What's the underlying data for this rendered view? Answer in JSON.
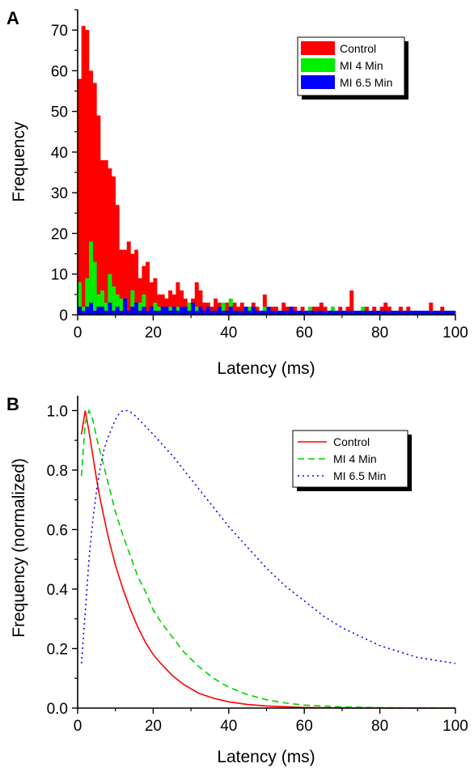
{
  "chart_data": [
    {
      "panel": "A",
      "type": "bar",
      "xlabel": "Latency (ms)",
      "ylabel": "Frequency",
      "xlim": [
        0,
        100
      ],
      "ylim": [
        0,
        75
      ],
      "xticks": [
        0,
        20,
        40,
        60,
        80,
        100
      ],
      "yticks": [
        0,
        10,
        20,
        30,
        40,
        50,
        60,
        70
      ],
      "bin_width": 1,
      "legend_position": "top-right",
      "series": [
        {
          "name": "Control",
          "color": "#ff0000",
          "values": [
            58,
            71,
            70,
            60,
            57,
            49,
            38,
            38,
            36,
            34,
            27,
            16,
            16,
            18,
            15,
            16,
            9,
            12,
            13,
            8,
            9,
            5,
            5,
            4,
            6,
            5,
            8,
            6,
            4,
            3,
            4,
            8,
            6,
            3,
            3,
            2,
            4,
            3,
            2,
            3,
            2,
            3,
            2,
            3,
            1,
            2,
            3,
            2,
            1,
            5,
            1,
            2,
            2,
            1,
            3,
            2,
            2,
            2,
            1,
            2,
            1,
            1,
            2,
            2,
            3,
            2,
            1,
            1,
            1,
            2,
            1,
            2,
            6,
            1,
            1,
            1,
            2,
            1,
            2,
            1,
            2,
            3,
            2,
            1,
            1,
            2,
            1,
            2,
            1,
            1,
            1,
            1,
            1,
            3,
            1,
            1,
            2,
            1,
            1,
            1
          ]
        },
        {
          "name": "MI 4 Min",
          "color": "#00ee00",
          "values": [
            8,
            2,
            9,
            18,
            13,
            5,
            6,
            3,
            10,
            7,
            5,
            4,
            4,
            1,
            6,
            1,
            3,
            5,
            1,
            1,
            3,
            2,
            1,
            2,
            2,
            1,
            2,
            0,
            1,
            3,
            1,
            2,
            1,
            1,
            2,
            0,
            1,
            2,
            3,
            1,
            4,
            1,
            1,
            1,
            1,
            2,
            1,
            1,
            1,
            2,
            1,
            1,
            1,
            1,
            1,
            0,
            2,
            1,
            1,
            1,
            1,
            2,
            1,
            1,
            1,
            1,
            1,
            2,
            1,
            1,
            1,
            1,
            1,
            1,
            1,
            2,
            1,
            1,
            1,
            1,
            1,
            1,
            1,
            1,
            1,
            1,
            1,
            1,
            1,
            1,
            1,
            1,
            1,
            1,
            1,
            1,
            1,
            1,
            1,
            1
          ]
        },
        {
          "name": "MI 6.5 Min",
          "color": "#0000ff",
          "values": [
            2,
            1,
            2,
            3,
            1,
            2,
            2,
            1,
            3,
            1,
            2,
            1,
            4,
            1,
            2,
            3,
            1,
            2,
            1,
            2,
            1,
            1,
            2,
            2,
            1,
            2,
            1,
            2,
            2,
            1,
            3,
            1,
            2,
            1,
            2,
            1,
            1,
            2,
            1,
            1,
            2,
            1,
            1,
            1,
            2,
            1,
            2,
            1,
            1,
            1,
            2,
            1,
            1,
            1,
            1,
            1,
            2,
            1,
            1,
            1,
            1,
            1,
            1,
            1,
            1,
            1,
            1,
            1,
            1,
            1,
            1,
            1,
            1,
            1,
            1,
            1,
            1,
            1,
            1,
            1,
            1,
            1,
            1,
            1,
            1,
            1,
            1,
            1,
            1,
            1,
            1,
            1,
            1,
            1,
            1,
            1,
            1,
            1,
            1,
            1
          ]
        }
      ]
    },
    {
      "panel": "B",
      "type": "line",
      "xlabel": "Latency (ms)",
      "ylabel": "Frequency (normalized)",
      "xlim": [
        0,
        100
      ],
      "ylim": [
        0,
        1.05
      ],
      "xticks": [
        0,
        20,
        40,
        60,
        80,
        100
      ],
      "yticks": [
        0.0,
        0.2,
        0.4,
        0.6,
        0.8,
        1.0
      ],
      "tick_format": "0.0",
      "legend_position": "top-right",
      "series": [
        {
          "name": "Control",
          "color": "#ff0000",
          "dash": "solid",
          "x": [
            1,
            2,
            3,
            4,
            5,
            6,
            8,
            10,
            12,
            14,
            16,
            18,
            20,
            22,
            25,
            28,
            32,
            36,
            40,
            45,
            50,
            60,
            70,
            80,
            90,
            100
          ],
          "y": [
            0.92,
            1.0,
            0.93,
            0.85,
            0.77,
            0.7,
            0.58,
            0.48,
            0.4,
            0.33,
            0.27,
            0.22,
            0.18,
            0.15,
            0.11,
            0.08,
            0.05,
            0.033,
            0.021,
            0.012,
            0.007,
            0.002,
            0.0005,
            0.0001,
            0.0,
            0.0
          ]
        },
        {
          "name": "MI 4 Min",
          "color": "#00d000",
          "dash": "dashed",
          "x": [
            1,
            2,
            3,
            4,
            5,
            6,
            8,
            10,
            12,
            14,
            16,
            18,
            20,
            22,
            25,
            28,
            32,
            36,
            40,
            45,
            50,
            55,
            60,
            70,
            80,
            90,
            100
          ],
          "y": [
            0.78,
            0.96,
            1.0,
            0.97,
            0.91,
            0.86,
            0.76,
            0.66,
            0.58,
            0.51,
            0.44,
            0.39,
            0.33,
            0.29,
            0.24,
            0.19,
            0.14,
            0.1,
            0.07,
            0.045,
            0.028,
            0.017,
            0.01,
            0.004,
            0.0015,
            0.0005,
            0.0002
          ]
        },
        {
          "name": "MI 6.5 Min",
          "color": "#0000ff",
          "dash": "dotted",
          "x": [
            1,
            2,
            3,
            4,
            5,
            6,
            7,
            8,
            9,
            10,
            11,
            12,
            13,
            14,
            15,
            17,
            20,
            25,
            30,
            35,
            40,
            45,
            50,
            55,
            60,
            65,
            70,
            75,
            80,
            85,
            90,
            95,
            100
          ],
          "y": [
            0.15,
            0.32,
            0.5,
            0.63,
            0.73,
            0.81,
            0.87,
            0.91,
            0.94,
            0.97,
            0.99,
            1.0,
            1.0,
            0.995,
            0.985,
            0.96,
            0.92,
            0.85,
            0.77,
            0.69,
            0.61,
            0.54,
            0.47,
            0.41,
            0.36,
            0.31,
            0.27,
            0.24,
            0.21,
            0.19,
            0.17,
            0.16,
            0.15
          ]
        }
      ]
    }
  ]
}
